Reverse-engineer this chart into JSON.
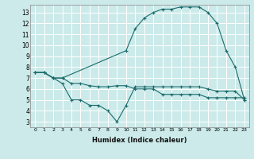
{
  "xlabel": "Humidex (Indice chaleur)",
  "bg_color": "#cceaea",
  "line_color": "#1a6b6b",
  "grid_color": "#ffffff",
  "line1_x": [
    0,
    1,
    2,
    3,
    4,
    5,
    6,
    7,
    8,
    9,
    10,
    11,
    12,
    13,
    14,
    15,
    16,
    17,
    18,
    19,
    20,
    21,
    22,
    23
  ],
  "line1_y": [
    7.5,
    7.5,
    7.0,
    7.0,
    6.5,
    6.5,
    6.3,
    6.2,
    6.2,
    6.3,
    6.3,
    6.0,
    6.0,
    6.0,
    5.5,
    5.5,
    5.5,
    5.5,
    5.5,
    5.2,
    5.2,
    5.2,
    5.2,
    5.2
  ],
  "line2_x": [
    0,
    1,
    2,
    3,
    4,
    5,
    6,
    7,
    8,
    9,
    10,
    11,
    12,
    13,
    14,
    15,
    16,
    17,
    18,
    19,
    20,
    21,
    22,
    23
  ],
  "line2_y": [
    7.5,
    7.5,
    7.0,
    6.5,
    5.0,
    5.0,
    4.5,
    4.5,
    4.0,
    3.0,
    4.5,
    6.2,
    6.2,
    6.2,
    6.2,
    6.2,
    6.2,
    6.2,
    6.2,
    6.0,
    5.8,
    5.8,
    5.8,
    5.0
  ],
  "line3_x": [
    0,
    1,
    2,
    3,
    10,
    11,
    12,
    13,
    14,
    15,
    16,
    17,
    18,
    19,
    20,
    21,
    22,
    23
  ],
  "line3_y": [
    7.5,
    7.5,
    7.0,
    7.0,
    9.5,
    11.5,
    12.5,
    13.0,
    13.3,
    13.3,
    13.5,
    13.5,
    13.5,
    13.0,
    12.0,
    9.5,
    8.0,
    5.0
  ],
  "xlim": [
    -0.5,
    23.5
  ],
  "ylim": [
    2.5,
    13.7
  ],
  "xticks": [
    0,
    1,
    2,
    3,
    4,
    5,
    6,
    7,
    8,
    9,
    10,
    11,
    12,
    13,
    14,
    15,
    16,
    17,
    18,
    19,
    20,
    21,
    22,
    23
  ],
  "yticks": [
    3,
    4,
    5,
    6,
    7,
    8,
    9,
    10,
    11,
    12,
    13
  ]
}
